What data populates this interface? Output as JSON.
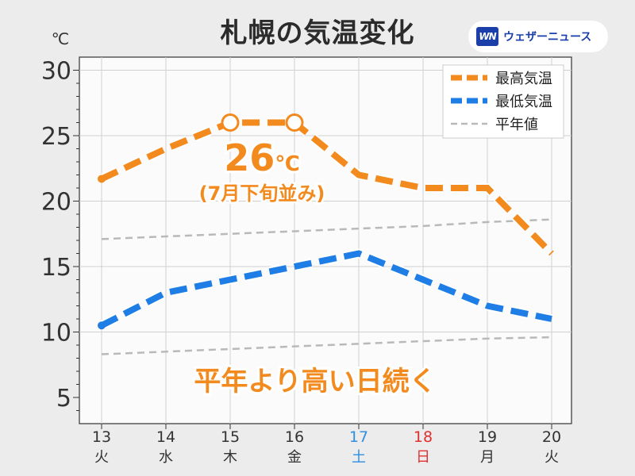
{
  "title": "札幌の気温変化",
  "logo": {
    "badge": "WN",
    "text": "ウェザーニュース"
  },
  "colors": {
    "high": "#f28a1e",
    "low": "#1e7ee6",
    "normal": "#b9b9b9",
    "saturday": "#2f8fe0",
    "sunday": "#e03030"
  },
  "chart_data": {
    "type": "line",
    "unit_label": "℃",
    "ylim": [
      3,
      31
    ],
    "yticks": [
      5,
      10,
      15,
      20,
      25,
      30
    ],
    "x": [
      "13",
      "14",
      "15",
      "16",
      "17",
      "18",
      "19",
      "20"
    ],
    "weekdays": [
      "火",
      "水",
      "木",
      "金",
      "土",
      "日",
      "月",
      "火"
    ],
    "weekday_colors": [
      "normal",
      "normal",
      "normal",
      "normal",
      "saturday",
      "sunday",
      "normal",
      "normal"
    ],
    "grid": true,
    "legend": "top-right",
    "series": [
      {
        "name": "最高気温",
        "values": [
          21.7,
          24,
          26,
          26,
          22,
          21,
          21,
          16
        ]
      },
      {
        "name": "最低気温",
        "values": [
          10.5,
          13,
          14,
          15,
          16,
          14,
          12,
          11
        ]
      },
      {
        "name": "平年値",
        "values": [
          17.1,
          17.3,
          17.5,
          17.7,
          17.9,
          18.1,
          18.4,
          18.6
        ]
      },
      {
        "values": [
          8.3,
          8.5,
          8.7,
          8.9,
          9.1,
          9.3,
          9.5,
          9.6
        ]
      }
    ],
    "annotations": {
      "peak_value": "26",
      "peak_unit": "℃",
      "peak_note": "(7月下旬並み)",
      "summary": "平年より高い日続く"
    }
  }
}
